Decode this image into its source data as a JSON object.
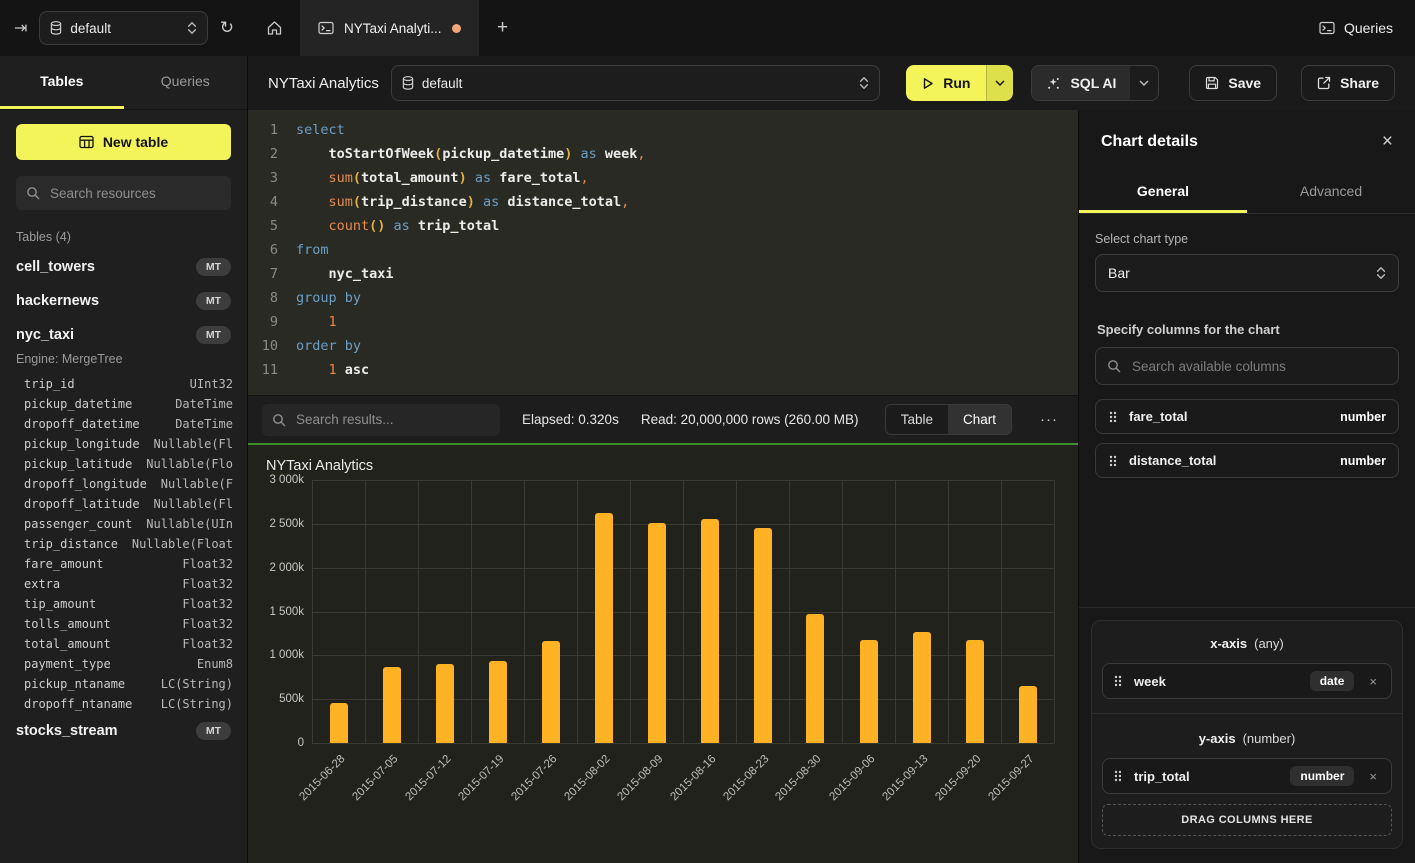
{
  "topbar": {
    "database_selector": {
      "value": "default"
    },
    "tab_label": "NYTaxi Analyti...",
    "queries_label": "Queries"
  },
  "sidebar": {
    "tabs": [
      {
        "label": "Tables",
        "active": true
      },
      {
        "label": "Queries",
        "active": false
      }
    ],
    "new_table_label": "New table",
    "search_placeholder": "Search resources",
    "section_header": "Tables (4)",
    "tables": [
      {
        "name": "cell_towers",
        "badge": "MT"
      },
      {
        "name": "hackernews",
        "badge": "MT"
      },
      {
        "name": "nyc_taxi",
        "badge": "MT",
        "engine": "Engine: MergeTree",
        "columns": [
          [
            "trip_id",
            "UInt32"
          ],
          [
            "pickup_datetime",
            "DateTime"
          ],
          [
            "dropoff_datetime",
            "DateTime"
          ],
          [
            "pickup_longitude",
            "Nullable(Fl"
          ],
          [
            "pickup_latitude",
            "Nullable(Flo"
          ],
          [
            "dropoff_longitude",
            "Nullable(F"
          ],
          [
            "dropoff_latitude",
            "Nullable(Fl"
          ],
          [
            "passenger_count",
            "Nullable(UIn"
          ],
          [
            "trip_distance",
            "Nullable(Float"
          ],
          [
            "fare_amount",
            "Float32"
          ],
          [
            "extra",
            "Float32"
          ],
          [
            "tip_amount",
            "Float32"
          ],
          [
            "tolls_amount",
            "Float32"
          ],
          [
            "total_amount",
            "Float32"
          ],
          [
            "payment_type",
            "Enum8"
          ],
          [
            "pickup_ntaname",
            "LC(String)"
          ],
          [
            "dropoff_ntaname",
            "LC(String)"
          ]
        ]
      },
      {
        "name": "stocks_stream",
        "badge": "MT"
      }
    ]
  },
  "query_header": {
    "title": "NYTaxi Analytics",
    "database_selector": "default",
    "run_label": "Run",
    "sql_ai_label": "SQL AI",
    "save_label": "Save",
    "share_label": "Share"
  },
  "editor": {
    "lines": [
      [
        [
          "select",
          "kw"
        ]
      ],
      [
        [
          "",
          "in"
        ],
        [
          "toStartOfWeek",
          "id"
        ],
        [
          "(",
          "pa"
        ],
        [
          "pickup_datetime",
          "id"
        ],
        [
          ")",
          "pa"
        ],
        [
          " as ",
          "kw"
        ],
        [
          "week",
          "id"
        ],
        [
          ",",
          "op"
        ]
      ],
      [
        [
          "",
          "in"
        ],
        [
          "sum",
          "fn"
        ],
        [
          "(",
          "pa"
        ],
        [
          "total_amount",
          "id"
        ],
        [
          ")",
          "pa"
        ],
        [
          " as ",
          "kw"
        ],
        [
          "fare_total",
          "id"
        ],
        [
          ",",
          "op"
        ]
      ],
      [
        [
          "",
          "in"
        ],
        [
          "sum",
          "fn"
        ],
        [
          "(",
          "pa"
        ],
        [
          "trip_distance",
          "id"
        ],
        [
          ")",
          "pa"
        ],
        [
          " as ",
          "kw"
        ],
        [
          "distance_total",
          "id"
        ],
        [
          ",",
          "op"
        ]
      ],
      [
        [
          "",
          "in"
        ],
        [
          "count",
          "fn"
        ],
        [
          "()",
          "pa"
        ],
        [
          " as ",
          "kw"
        ],
        [
          "trip_total",
          "id"
        ]
      ],
      [
        [
          "from",
          "kw"
        ]
      ],
      [
        [
          "",
          "in"
        ],
        [
          "nyc_taxi",
          "id"
        ]
      ],
      [
        [
          "group by",
          "kw"
        ]
      ],
      [
        [
          "",
          "in"
        ],
        [
          "1",
          "op"
        ]
      ],
      [
        [
          "order by",
          "kw"
        ]
      ],
      [
        [
          "",
          "in"
        ],
        [
          "1",
          "op"
        ],
        [
          " ",
          "pl"
        ],
        [
          "asc",
          "id"
        ]
      ]
    ]
  },
  "results_bar": {
    "search_placeholder": "Search results...",
    "elapsed": "Elapsed: 0.320s",
    "read": "Read: 20,000,000 rows (260.00 MB)",
    "view_toggle": [
      {
        "label": "Table",
        "active": false
      },
      {
        "label": "Chart",
        "active": true
      }
    ],
    "more_label": "···"
  },
  "chart_data": {
    "type": "bar",
    "title": "NYTaxi Analytics",
    "categories": [
      "2015-06-28",
      "2015-07-05",
      "2015-07-12",
      "2015-07-19",
      "2015-07-26",
      "2015-08-02",
      "2015-08-09",
      "2015-08-16",
      "2015-08-23",
      "2015-08-30",
      "2015-09-06",
      "2015-09-13",
      "2015-09-20",
      "2015-09-27"
    ],
    "series": [
      {
        "name": "trip_total",
        "values": [
          460000,
          870000,
          900000,
          930000,
          1160000,
          2620000,
          2510000,
          2560000,
          2450000,
          1470000,
          1180000,
          1270000,
          1180000,
          650000
        ]
      }
    ],
    "xlabel": "",
    "ylabel": "",
    "ylim": [
      0,
      3000000
    ],
    "y_ticks": [
      "3 000k",
      "2 500k",
      "2 000k",
      "1 500k",
      "1 000k",
      "500k",
      "0"
    ],
    "grid": true,
    "legend": "none",
    "bar_color": "#ffb224"
  },
  "chart_panel": {
    "title": "Chart details",
    "tabs": [
      {
        "label": "General",
        "active": true
      },
      {
        "label": "Advanced",
        "active": false
      }
    ],
    "chart_type_label": "Select chart type",
    "chart_type_value": "Bar",
    "columns_label": "Specify columns for the chart",
    "search_placeholder": "Search available columns",
    "available_columns": [
      {
        "name": "fare_total",
        "type": "number"
      },
      {
        "name": "distance_total",
        "type": "number"
      }
    ],
    "x_axis": {
      "label": "x-axis",
      "constraint": "(any)",
      "columns": [
        {
          "name": "week",
          "type": "date"
        }
      ]
    },
    "y_axis": {
      "label": "y-axis",
      "constraint": "(number)",
      "columns": [
        {
          "name": "trip_total",
          "type": "number"
        }
      ]
    },
    "drop_zone_label": "DRAG COLUMNS HERE"
  }
}
